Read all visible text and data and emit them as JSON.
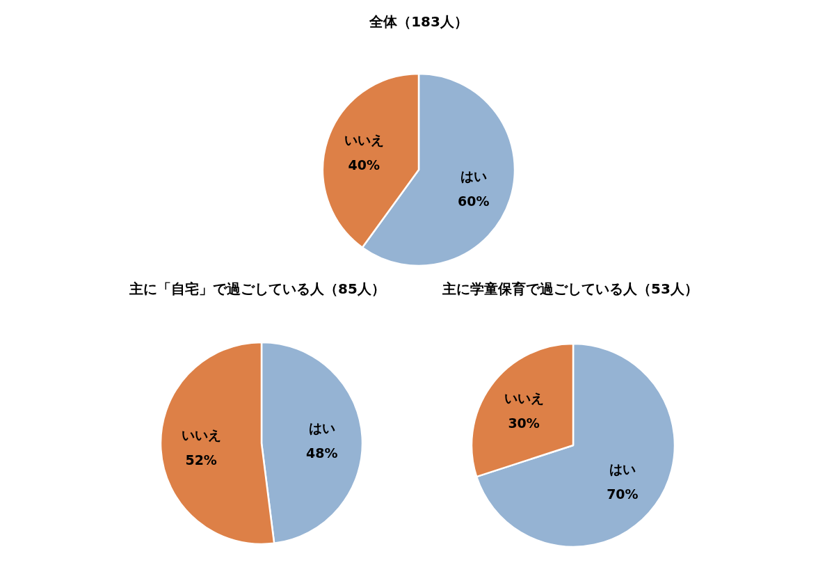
{
  "chart_data": [
    {
      "type": "pie",
      "title": "全体（183人）",
      "categories": [
        "はい",
        "いいえ"
      ],
      "values": [
        60,
        40
      ],
      "value_labels": [
        "60%",
        "40%"
      ],
      "colors": [
        "#95b3d3",
        "#dd8047"
      ]
    },
    {
      "type": "pie",
      "title": "主に「自宅」で過ごしている人（85人）",
      "categories": [
        "はい",
        "いいえ"
      ],
      "values": [
        48,
        52
      ],
      "value_labels": [
        "48%",
        "52%"
      ],
      "colors": [
        "#95b3d3",
        "#dd8047"
      ]
    },
    {
      "type": "pie",
      "title": "主に学童保育で過ごしている人（53人）",
      "categories": [
        "はい",
        "いいえ"
      ],
      "values": [
        70,
        30
      ],
      "value_labels": [
        "70%",
        "30%"
      ],
      "colors": [
        "#95b3d3",
        "#dd8047"
      ]
    }
  ]
}
